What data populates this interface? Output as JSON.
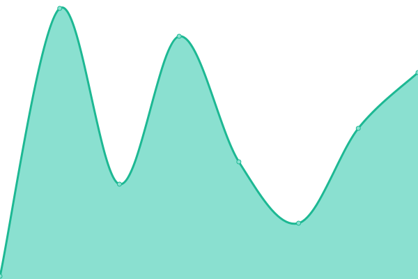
{
  "chart_data": {
    "type": "area",
    "x": [
      0,
      1,
      2,
      3,
      4,
      5,
      6,
      7
    ],
    "values": [
      1,
      97,
      34,
      87,
      42,
      20,
      54,
      74
    ],
    "ylim": [
      0,
      100
    ],
    "grid": false,
    "smooth": true,
    "colors": {
      "line": "#1db893",
      "fill": "#8ae0d0",
      "marker": "#8ae0d0"
    }
  }
}
